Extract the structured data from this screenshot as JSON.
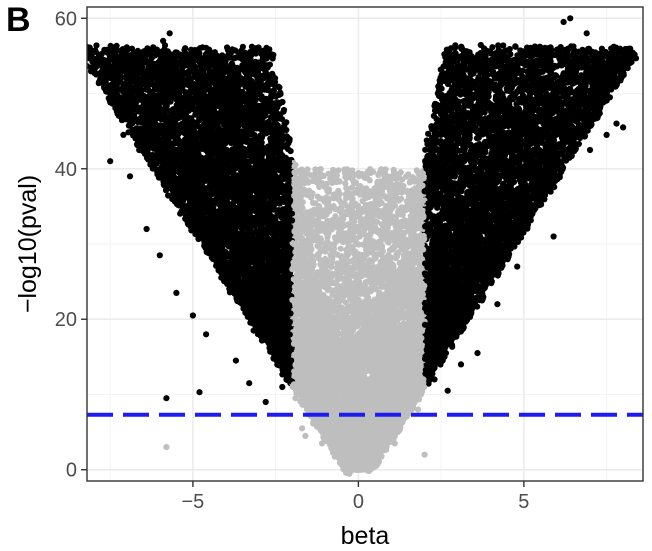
{
  "panel_label": "B",
  "chart_data": {
    "type": "scatter",
    "title": "",
    "xlabel": "beta",
    "ylabel": "−log10(pval)",
    "xlim": [
      -8.2,
      8.6
    ],
    "ylim": [
      -1.5,
      61.5
    ],
    "x_ticks": [
      -5,
      0,
      5
    ],
    "x_tick_labels": [
      "−5",
      "0",
      "5"
    ],
    "y_ticks": [
      0,
      20,
      40,
      60
    ],
    "y_tick_labels": [
      "0",
      "20",
      "40",
      "60"
    ],
    "grid": true,
    "threshold_line": {
      "y": 7.3,
      "color": "#1c1cf0",
      "style": "dashed"
    },
    "colors": {
      "significant": "#000000",
      "not_significant": "#bebebe",
      "threshold": "#1c1cf0"
    },
    "cutoffs": {
      "beta_abs": 2
    },
    "envelope": {
      "outer_edge_abs_beta_at_60": 7.8,
      "inner_edge_abs_beta_at_0": 0.15
    },
    "series": [
      {
        "group": "significant",
        "points": [
          [
            -7.5,
            41.0
          ],
          [
            -7.1,
            44.5
          ],
          [
            -6.9,
            39.0
          ],
          [
            -6.5,
            52.5
          ],
          [
            -6.2,
            55.0
          ],
          [
            -5.9,
            57.0
          ],
          [
            -5.7,
            58.0
          ],
          [
            -6.4,
            32.0
          ],
          [
            -6.0,
            28.5
          ],
          [
            -5.5,
            23.5
          ],
          [
            -5.0,
            20.5
          ],
          [
            -4.6,
            18.0
          ],
          [
            -5.8,
            9.5
          ],
          [
            -4.8,
            10.3
          ],
          [
            -3.7,
            14.5
          ],
          [
            -3.3,
            11.5
          ],
          [
            -2.8,
            9.0
          ],
          [
            -2.3,
            11.0
          ],
          [
            -2.2,
            25.0
          ],
          [
            -2.5,
            40.0
          ],
          [
            -3.0,
            44.0
          ],
          [
            -4.0,
            47.0
          ],
          [
            -2.1,
            41.0
          ],
          [
            2.1,
            40.0
          ],
          [
            2.3,
            12.0
          ],
          [
            2.7,
            10.5
          ],
          [
            3.1,
            14.0
          ],
          [
            3.3,
            24.0
          ],
          [
            3.6,
            15.5
          ],
          [
            4.2,
            22.0
          ],
          [
            4.8,
            27.0
          ],
          [
            5.5,
            37.0
          ],
          [
            5.9,
            31.0
          ],
          [
            6.3,
            49.0
          ],
          [
            6.6,
            52.0
          ],
          [
            6.9,
            58.0
          ],
          [
            6.4,
            60.0
          ],
          [
            6.2,
            59.5
          ],
          [
            7.0,
            42.5
          ],
          [
            7.5,
            44.5
          ],
          [
            7.8,
            46.0
          ],
          [
            8.0,
            45.5
          ],
          [
            7.6,
            49.5
          ],
          [
            3.3,
            41.5
          ],
          [
            4.0,
            46.0
          ],
          [
            5.0,
            50.5
          ],
          [
            2.0,
            37.0
          ]
        ]
      },
      {
        "group": "not_significant",
        "points": [
          [
            -1.9,
            40.5
          ],
          [
            -1.8,
            37.0
          ],
          [
            -1.9,
            9.5
          ],
          [
            -1.7,
            5.5
          ],
          [
            -1.5,
            10.5
          ],
          [
            -1.2,
            14.0
          ],
          [
            -0.9,
            6.5
          ],
          [
            -0.5,
            1.5
          ],
          [
            0.0,
            0.1
          ],
          [
            0.4,
            1.0
          ],
          [
            1.0,
            5.0
          ],
          [
            1.3,
            9.8
          ],
          [
            1.6,
            13.0
          ],
          [
            1.9,
            39.5
          ],
          [
            1.8,
            36.5
          ],
          [
            1.8,
            8.0
          ],
          [
            -1.6,
            4.5
          ],
          [
            -1.1,
            3.5
          ],
          [
            1.1,
            3.5
          ],
          [
            2.0,
            2.0
          ],
          [
            -5.8,
            3.0
          ],
          [
            -0.3,
            2.5
          ],
          [
            0.3,
            2.0
          ]
        ]
      }
    ]
  }
}
